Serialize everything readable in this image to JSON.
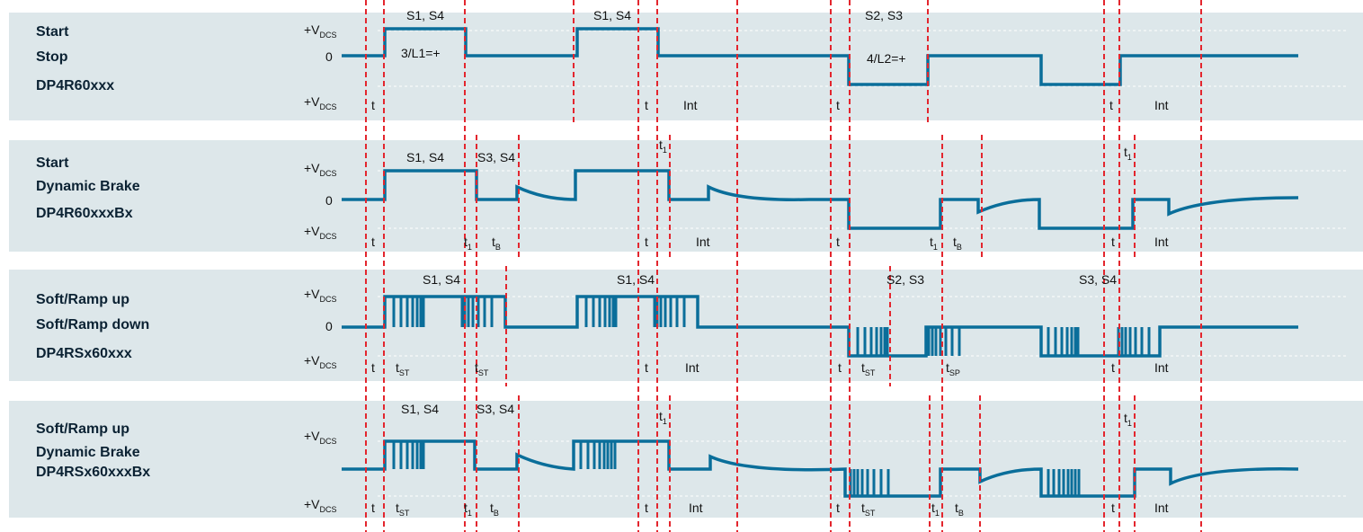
{
  "panels": [
    {
      "lines": [
        "Start",
        "Stop",
        "DP4R60xxx"
      ],
      "levels": {
        "top": "+V",
        "top_sub": "DCS",
        "mid": "0",
        "bot": "+V",
        "bot_sub": "DCS"
      },
      "annotations": [
        {
          "text": "S1, S4"
        },
        {
          "text": "S1, S4"
        },
        {
          "text": "S2, S3"
        },
        {
          "text": "3/L1=+"
        },
        {
          "text": "4/L2=+"
        },
        {
          "text": "t"
        },
        {
          "text": "t"
        },
        {
          "text": "Int"
        },
        {
          "text": "t"
        },
        {
          "text": "t"
        },
        {
          "text": "Int"
        }
      ]
    },
    {
      "lines": [
        "Start",
        "Dynamic Brake",
        "DP4R60xxxBx"
      ],
      "levels": {
        "top": "+V",
        "top_sub": "DCS",
        "mid": "0",
        "bot": "+V",
        "bot_sub": "DCS"
      },
      "annotations": [
        {
          "text": "S1, S4"
        },
        {
          "text": "S3, S4"
        },
        {
          "text": "t"
        },
        {
          "text": "t"
        },
        {
          "text": "t"
        },
        {
          "text": "Int"
        },
        {
          "text": "t"
        },
        {
          "text": "t"
        },
        {
          "text": "t"
        },
        {
          "text": "Int"
        }
      ]
    },
    {
      "lines": [
        "Soft/Ramp up",
        "Soft/Ramp down",
        "DP4RSx60xxx"
      ],
      "levels": {
        "top": "+V",
        "top_sub": "DCS",
        "mid": "0",
        "bot": "+V",
        "bot_sub": "DCS"
      },
      "annotations": [
        {
          "text": "S1, S4"
        },
        {
          "text": "S1, S4"
        },
        {
          "text": "S2, S3"
        },
        {
          "text": "S3, S4"
        },
        {
          "text": "t"
        },
        {
          "text": "t"
        },
        {
          "text": "t"
        },
        {
          "text": "Int"
        },
        {
          "text": "t"
        },
        {
          "text": "t"
        },
        {
          "text": "t"
        },
        {
          "text": "Int"
        }
      ]
    },
    {
      "lines": [
        "Soft/Ramp up",
        "Dynamic Brake",
        "DP4RSx60xxxBx"
      ],
      "levels": {
        "top": "+V",
        "top_sub": "DCS",
        "mid": "",
        "bot": "+V",
        "bot_sub": "DCS"
      },
      "annotations": [
        {
          "text": "S1, S4"
        },
        {
          "text": "S3, S4"
        },
        {
          "text": "t"
        },
        {
          "text": "t"
        },
        {
          "text": "t"
        },
        {
          "text": "t"
        },
        {
          "text": "Int"
        },
        {
          "text": "t"
        },
        {
          "text": "t"
        },
        {
          "text": "t"
        },
        {
          "text": "t"
        },
        {
          "text": "Int"
        }
      ]
    }
  ],
  "subscripts": {
    "st": "ST",
    "sp": "SP",
    "b": "B",
    "one": "1"
  },
  "colors": {
    "panel_bg": "#dde7ea",
    "wave": "#0a6e9a",
    "marker": "#e3262e"
  }
}
